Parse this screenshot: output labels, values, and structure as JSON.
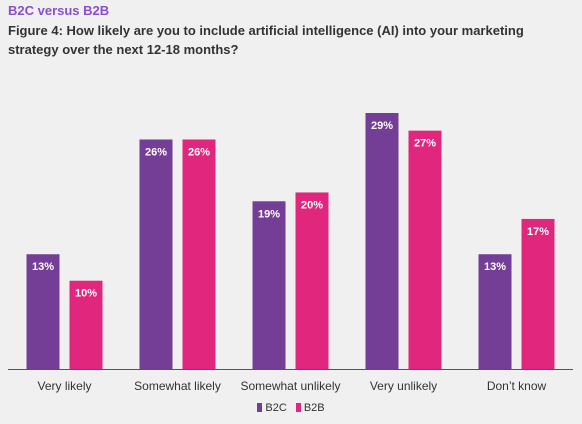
{
  "kicker": "B2C versus B2B",
  "title": "Figure 4: How likely are you to include artificial intelligence (AI) into your marketing strategy over the next 12-18 months?",
  "colors": {
    "B2C": "#753e96",
    "B2B": "#e0267d",
    "text": "#333333",
    "kicker": "#8a4fd0",
    "background": "#f0f0f0"
  },
  "chart_data": {
    "type": "bar",
    "title": "Figure 4: How likely are you to include artificial intelligence (AI) into your marketing strategy over the next 12-18 months?",
    "categories": [
      "Very likely",
      "Somewhat likely",
      "Somewhat unlikely",
      "Very unlikely",
      "Don’t know"
    ],
    "series": [
      {
        "name": "B2C",
        "values": [
          13,
          26,
          19,
          29,
          13
        ],
        "labels": [
          "13%",
          "26%",
          "19%",
          "29%",
          "13%"
        ]
      },
      {
        "name": "B2B",
        "values": [
          10,
          26,
          20,
          27,
          17
        ],
        "labels": [
          "10%",
          "26%",
          "20%",
          "27%",
          "17%"
        ]
      }
    ],
    "xlabel": "",
    "ylabel": "",
    "ylim": [
      0,
      29
    ],
    "grid": false,
    "legend_position": "bottom-center"
  }
}
